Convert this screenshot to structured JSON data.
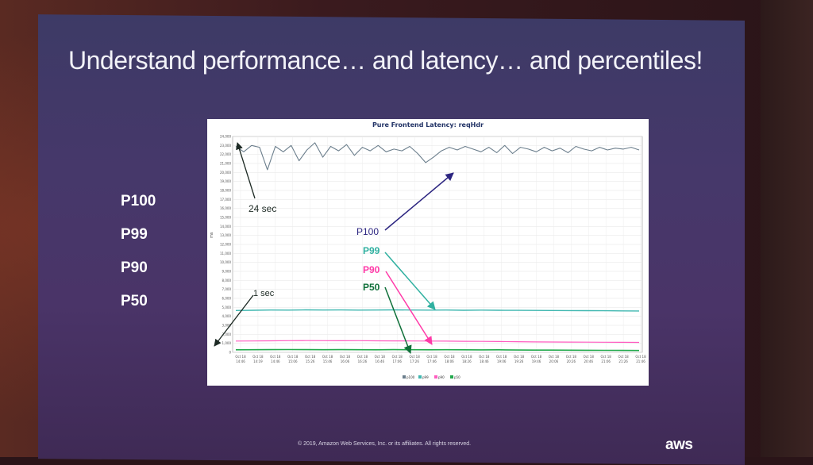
{
  "slide": {
    "title": "Understand performance… and latency… and percentiles!",
    "percentile_labels": [
      "P100",
      "P99",
      "P90",
      "P50"
    ],
    "footer": "© 2019, Amazon Web Services, Inc. or its affiliates. All rights reserved.",
    "logo": "aws"
  },
  "annotations": {
    "top": "24 sec",
    "bottom": "1 sec",
    "p100": "P100",
    "p99": "P99",
    "p90": "P90",
    "p50": "P50"
  },
  "colors": {
    "p100": "#6b7e8c",
    "p99": "#3fb7b0",
    "p90": "#ff5cc0",
    "p50": "#23a94d",
    "arrow_p100": "#2c2580"
  },
  "chart_data": {
    "type": "line",
    "title": "Pure Frontend Latency: reqHdr",
    "ylabel": "ms",
    "ylim": [
      0,
      24000
    ],
    "y_ticks": [
      "0",
      "1,000",
      "2,000",
      "3,000",
      "4,000",
      "5,000",
      "6,000",
      "7,000",
      "8,000",
      "9,000",
      "10,000",
      "11,000",
      "12,000",
      "13,000",
      "14,000",
      "15,000",
      "16,000",
      "17,000",
      "18,000",
      "19,000",
      "20,000",
      "21,000",
      "22,000",
      "23,000",
      "24,000"
    ],
    "y_tick_values": [
      0,
      1000,
      2000,
      3000,
      4000,
      5000,
      6000,
      7000,
      8000,
      9000,
      10000,
      11000,
      12000,
      13000,
      14000,
      15000,
      16000,
      17000,
      18000,
      19000,
      20000,
      21000,
      22000,
      23000,
      24000
    ],
    "x_ticks": [
      {
        "date": "Oct 18",
        "time": "14:46"
      },
      {
        "date": "Oct 18",
        "time": "14:19"
      },
      {
        "date": "Oct 18",
        "time": "14:46"
      },
      {
        "date": "Oct 18",
        "time": "15:06"
      },
      {
        "date": "Oct 18",
        "time": "15:26"
      },
      {
        "date": "Oct 18",
        "time": "15:46"
      },
      {
        "date": "Oct 18",
        "time": "16:06"
      },
      {
        "date": "Oct 18",
        "time": "16:26"
      },
      {
        "date": "Oct 18",
        "time": "16:46"
      },
      {
        "date": "Oct 18",
        "time": "17:06"
      },
      {
        "date": "Oct 18",
        "time": "17:26"
      },
      {
        "date": "Oct 18",
        "time": "17:46"
      },
      {
        "date": "Oct 18",
        "time": "18:06"
      },
      {
        "date": "Oct 18",
        "time": "18:26"
      },
      {
        "date": "Oct 18",
        "time": "18:46"
      },
      {
        "date": "Oct 18",
        "time": "19:06"
      },
      {
        "date": "Oct 18",
        "time": "19:26"
      },
      {
        "date": "Oct 18",
        "time": "19:46"
      },
      {
        "date": "Oct 18",
        "time": "20:06"
      },
      {
        "date": "Oct 18",
        "time": "20:26"
      },
      {
        "date": "Oct 18",
        "time": "20:46"
      },
      {
        "date": "Oct 18",
        "time": "21:06"
      },
      {
        "date": "Oct 18",
        "time": "21:26"
      },
      {
        "date": "Oct 18",
        "time": "21:46"
      }
    ],
    "legend": [
      "p100",
      "p99",
      "p90",
      "p50"
    ],
    "series": [
      {
        "name": "p100",
        "values": [
          22900,
          22300,
          23000,
          22800,
          20300,
          22900,
          22300,
          23000,
          21300,
          22500,
          23300,
          21700,
          22900,
          22400,
          23100,
          21900,
          22800,
          22400,
          23000,
          22300,
          22600,
          22400,
          22900,
          22100,
          21100,
          21700,
          22400,
          22800,
          22500,
          22900,
          22600,
          22300,
          22800,
          22200,
          23000,
          22100,
          22800,
          22600,
          22300,
          22800,
          22400,
          22700,
          22200,
          22900,
          22600,
          22400,
          22800,
          22500,
          22700,
          22600,
          22800,
          22500
        ]
      },
      {
        "name": "p99",
        "values": [
          4650,
          4680,
          4700,
          4690,
          4720,
          4700,
          4710,
          4690,
          4700,
          4720,
          4700,
          4690,
          4700,
          4680,
          4690,
          4680,
          4670,
          4660,
          4650,
          4640,
          4630,
          4620,
          4610,
          4600
        ]
      },
      {
        "name": "p90",
        "values": [
          1250,
          1260,
          1280,
          1300,
          1310,
          1300,
          1290,
          1300,
          1280,
          1270,
          1260,
          1250,
          1240,
          1230,
          1220,
          1200,
          1180,
          1160,
          1150,
          1140,
          1130,
          1120,
          1110,
          1100
        ]
      },
      {
        "name": "p50",
        "values": [
          280,
          290,
          300,
          310,
          300,
          290,
          300,
          290,
          280,
          300,
          290,
          280,
          290,
          280,
          270,
          280,
          260,
          250,
          250,
          240,
          230,
          220,
          210,
          200
        ]
      }
    ]
  }
}
